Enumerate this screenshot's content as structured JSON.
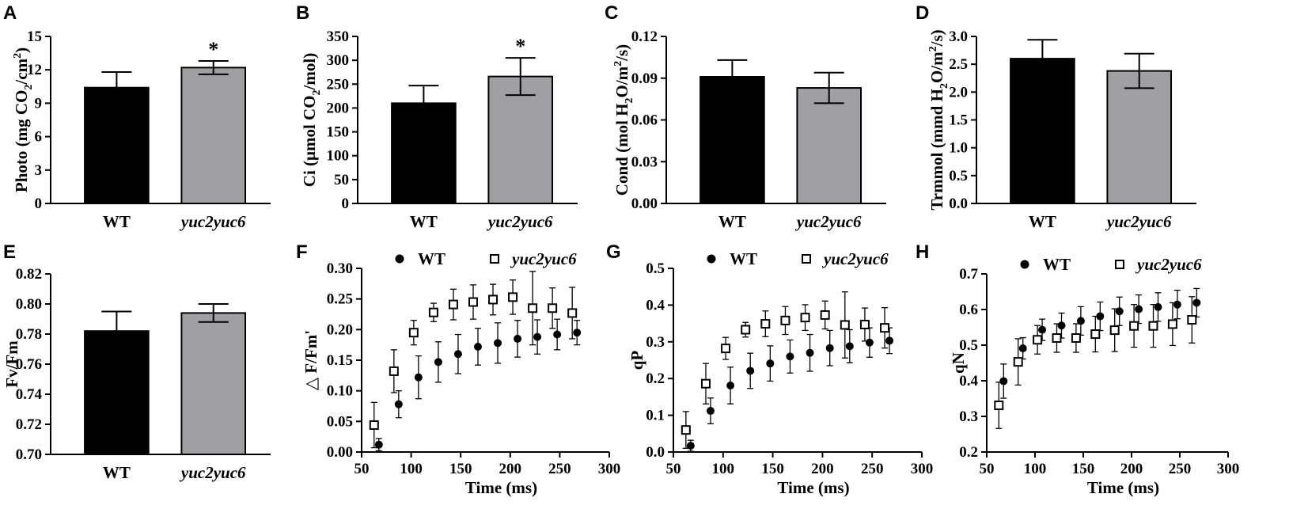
{
  "colors": {
    "wt_bar": "#000000",
    "mut_bar": "#a0a0a4",
    "axis": "#000000"
  },
  "chart_data": [
    {
      "id": "A",
      "type": "bar",
      "panel_label": "A",
      "categories": [
        "WT",
        "yuc2yuc6"
      ],
      "values": [
        10.4,
        12.2
      ],
      "errors": [
        1.4,
        0.6
      ],
      "significance": [
        "",
        "*"
      ],
      "ylabel": "Photo (mg CO2/cm2)",
      "ylabel_parts": [
        "Photo (mg CO",
        "2",
        "/cm",
        "2",
        ")"
      ],
      "ylim": [
        0,
        15
      ],
      "yticks": [
        0,
        3,
        6,
        9,
        12,
        15
      ],
      "ytick_labels": [
        "0",
        "3",
        "6",
        "9",
        "12",
        "15"
      ]
    },
    {
      "id": "B",
      "type": "bar",
      "panel_label": "B",
      "categories": [
        "WT",
        "yuc2yuc6"
      ],
      "values": [
        210,
        266
      ],
      "errors": [
        37,
        39
      ],
      "significance": [
        "",
        "*"
      ],
      "ylabel": "Ci (μmol CO2/mol)",
      "ylabel_parts": [
        "Ci (μmol CO",
        "2",
        "/mol)"
      ],
      "ylim": [
        0,
        350
      ],
      "yticks": [
        0,
        50,
        100,
        150,
        200,
        250,
        300,
        350
      ],
      "ytick_labels": [
        "0",
        "50",
        "100",
        "150",
        "200",
        "250",
        "300",
        "350"
      ]
    },
    {
      "id": "C",
      "type": "bar",
      "panel_label": "C",
      "categories": [
        "WT",
        "yuc2yuc6"
      ],
      "values": [
        0.091,
        0.083
      ],
      "errors": [
        0.012,
        0.011
      ],
      "significance": [
        "",
        ""
      ],
      "ylabel": "Cond (mol H2O/m2/s)",
      "ylabel_parts": [
        "Cond (mol H",
        "2",
        "O/m",
        "2",
        "/s)"
      ],
      "ylim": [
        0,
        0.12
      ],
      "yticks": [
        0,
        0.03,
        0.06,
        0.09,
        0.12
      ],
      "ytick_labels": [
        "0.00",
        "0.03",
        "0.06",
        "0.09",
        "0.12"
      ]
    },
    {
      "id": "D",
      "type": "bar",
      "panel_label": "D",
      "categories": [
        "WT",
        "yuc2yuc6"
      ],
      "values": [
        2.6,
        2.38
      ],
      "errors": [
        0.34,
        0.31
      ],
      "significance": [
        "",
        ""
      ],
      "ylabel": "Trmmol (mmd H2O/m2/s)",
      "ylabel_parts": [
        "Trmmol (mmd H",
        "2",
        "O/m",
        "2",
        "/s)"
      ],
      "ylim": [
        0,
        3.0
      ],
      "yticks": [
        0,
        0.5,
        1.0,
        1.5,
        2.0,
        2.5,
        3.0
      ],
      "ytick_labels": [
        "0.0",
        "0.5",
        "1.0",
        "1.5",
        "2.0",
        "2.5",
        "3.0"
      ]
    },
    {
      "id": "E",
      "type": "bar",
      "panel_label": "E",
      "categories": [
        "WT",
        "yuc2yuc6"
      ],
      "values": [
        0.782,
        0.794
      ],
      "errors": [
        0.013,
        0.006
      ],
      "significance": [
        "",
        ""
      ],
      "ylabel": "Fv/Fm",
      "ylabel_parts": [
        "Fv/Fm"
      ],
      "ylim": [
        0.7,
        0.82
      ],
      "yticks": [
        0.7,
        0.72,
        0.74,
        0.76,
        0.78,
        0.8,
        0.82
      ],
      "ytick_labels": [
        "0.70",
        "0.72",
        "0.74",
        "0.76",
        "0.78",
        "0.80",
        "0.82"
      ]
    },
    {
      "id": "F",
      "type": "scatter",
      "panel_label": "F",
      "xlabel": "Time (ms)",
      "ylabel": "△ F/Fm'",
      "ylabel_parts": [
        "△ F/Fm'"
      ],
      "xlim": [
        50,
        300
      ],
      "xticks": [
        50,
        100,
        150,
        200,
        250,
        300
      ],
      "xtick_labels": [
        "50",
        "100",
        "150",
        "200",
        "250",
        "300"
      ],
      "ylim": [
        0,
        0.3
      ],
      "yticks": [
        0,
        0.05,
        0.1,
        0.15,
        0.2,
        0.25,
        0.3
      ],
      "ytick_labels": [
        "0.00",
        "0.05",
        "0.10",
        "0.15",
        "0.20",
        "0.25",
        "0.30"
      ],
      "x": [
        65,
        85,
        105,
        125,
        145,
        165,
        185,
        205,
        225,
        245,
        265
      ],
      "series": [
        {
          "name": "WT",
          "marker": "filled-circle",
          "values": [
            0.012,
            0.078,
            0.122,
            0.147,
            0.16,
            0.172,
            0.178,
            0.185,
            0.188,
            0.192,
            0.195
          ],
          "errors": [
            0.01,
            0.022,
            0.035,
            0.033,
            0.032,
            0.03,
            0.033,
            0.03,
            0.028,
            0.025,
            0.02
          ]
        },
        {
          "name": "yuc2yuc6",
          "marker": "open-square",
          "values": [
            0.044,
            0.132,
            0.195,
            0.228,
            0.241,
            0.245,
            0.249,
            0.253,
            0.235,
            0.235,
            0.227
          ],
          "errors": [
            0.037,
            0.035,
            0.02,
            0.015,
            0.025,
            0.028,
            0.025,
            0.028,
            0.06,
            0.033,
            0.042
          ]
        }
      ]
    },
    {
      "id": "G",
      "type": "scatter",
      "panel_label": "G",
      "xlabel": "Time (ms)",
      "ylabel": "qP",
      "ylabel_parts": [
        "qP"
      ],
      "xlim": [
        50,
        300
      ],
      "xticks": [
        50,
        100,
        150,
        200,
        250,
        300
      ],
      "xtick_labels": [
        "50",
        "100",
        "150",
        "200",
        "250",
        "300"
      ],
      "ylim": [
        0,
        0.5
      ],
      "yticks": [
        0,
        0.1,
        0.2,
        0.3,
        0.4,
        0.5
      ],
      "ytick_labels": [
        "0.0",
        "0.1",
        "0.2",
        "0.3",
        "0.4",
        "0.5"
      ],
      "x": [
        65,
        85,
        105,
        125,
        145,
        165,
        185,
        205,
        225,
        245,
        265
      ],
      "series": [
        {
          "name": "WT",
          "marker": "filled-circle",
          "values": [
            0.017,
            0.112,
            0.181,
            0.221,
            0.241,
            0.26,
            0.27,
            0.283,
            0.288,
            0.298,
            0.303
          ],
          "errors": [
            0.015,
            0.035,
            0.05,
            0.048,
            0.048,
            0.045,
            0.05,
            0.048,
            0.045,
            0.04,
            0.035
          ]
        },
        {
          "name": "yuc2yuc6",
          "marker": "open-square",
          "values": [
            0.06,
            0.186,
            0.282,
            0.333,
            0.349,
            0.358,
            0.366,
            0.373,
            0.346,
            0.347,
            0.338
          ],
          "errors": [
            0.05,
            0.055,
            0.03,
            0.02,
            0.035,
            0.038,
            0.035,
            0.038,
            0.09,
            0.045,
            0.055
          ]
        }
      ]
    },
    {
      "id": "H",
      "type": "scatter",
      "panel_label": "H",
      "xlabel": "Time (ms)",
      "ylabel": "qN",
      "ylabel_parts": [
        "qN"
      ],
      "xlim": [
        50,
        300
      ],
      "xticks": [
        50,
        100,
        150,
        200,
        250,
        300
      ],
      "xtick_labels": [
        "50",
        "100",
        "150",
        "200",
        "250",
        "300"
      ],
      "ylim": [
        0.2,
        0.7
      ],
      "yticks": [
        0.2,
        0.3,
        0.4,
        0.5,
        0.6,
        0.7
      ],
      "ytick_labels": [
        "0.2",
        "0.3",
        "0.4",
        "0.5",
        "0.6",
        "0.7"
      ],
      "x": [
        65,
        85,
        105,
        125,
        145,
        165,
        185,
        205,
        225,
        245,
        265
      ],
      "series": [
        {
          "name": "WT",
          "marker": "filled-circle",
          "values": [
            0.399,
            0.491,
            0.543,
            0.555,
            0.568,
            0.581,
            0.595,
            0.601,
            0.607,
            0.614,
            0.619
          ],
          "errors": [
            0.048,
            0.03,
            0.03,
            0.035,
            0.04,
            0.04,
            0.04,
            0.04,
            0.04,
            0.04,
            0.04
          ]
        },
        {
          "name": "yuc2yuc6",
          "marker": "open-square",
          "values": [
            0.331,
            0.453,
            0.515,
            0.52,
            0.52,
            0.531,
            0.542,
            0.554,
            0.554,
            0.559,
            0.571
          ],
          "errors": [
            0.065,
            0.065,
            0.04,
            0.04,
            0.04,
            0.05,
            0.06,
            0.06,
            0.06,
            0.06,
            0.065
          ]
        }
      ]
    }
  ]
}
